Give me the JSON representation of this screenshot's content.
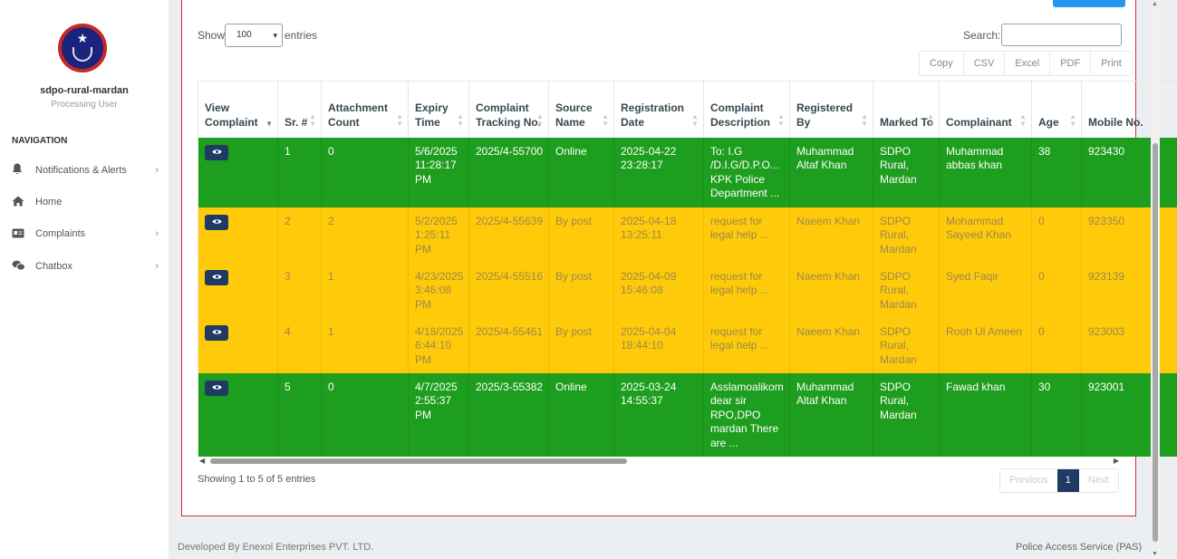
{
  "sidebar": {
    "username": "sdpo-rural-mardan",
    "role": "Processing User",
    "nav_heading": "NAVIGATION",
    "items": [
      {
        "label": "Notifications & Alerts",
        "icon": "bell-icon"
      },
      {
        "label": "Home",
        "icon": "home-icon"
      },
      {
        "label": "Complaints",
        "icon": "id-card-icon"
      },
      {
        "label": "Chatbox",
        "icon": "chat-icon"
      }
    ]
  },
  "controls": {
    "show_label": "Show",
    "entries_value": "100",
    "entries_label": "entries",
    "search_label": "Search:",
    "search_value": "",
    "export_buttons": [
      "Copy",
      "CSV",
      "Excel",
      "PDF",
      "Print"
    ]
  },
  "table": {
    "headers": [
      "View Complaint",
      "Sr. #",
      "Attachment Count",
      "Expiry Time",
      "Complaint Tracking No.",
      "Source Name",
      "Registration Date",
      "Complaint Description",
      "Registered By",
      "Marked To",
      "Complainant",
      "Age",
      "Mobile No."
    ],
    "rows": [
      {
        "status": "green",
        "sr": "1",
        "attachments": "0",
        "expiry": "5/6/2025 11:28:17 PM",
        "tracking": "2025/4-55700",
        "source": "Online",
        "reg_date": "2025-04-22 23:28:17",
        "description": "To: I.G /D.I.G/D.P.O... KPK Police Department ...",
        "registered_by": "Muhammad Altaf Khan",
        "marked_to": "SDPO Rural, Mardan",
        "complainant": "Muhammad abbas khan",
        "age": "38",
        "mobile": "923430"
      },
      {
        "status": "yellow",
        "sr": "2",
        "attachments": "2",
        "expiry": "5/2/2025 1:25:11 PM",
        "tracking": "2025/4-55639",
        "source": "By post",
        "reg_date": "2025-04-18 13:25:11",
        "description": "request for legal help ...",
        "registered_by": "Naeem Khan",
        "marked_to": "SDPO Rural, Mardan",
        "complainant": "Mohammad Sayeed Khan",
        "age": "0",
        "mobile": "923350"
      },
      {
        "status": "yellow",
        "sr": "3",
        "attachments": "1",
        "expiry": "4/23/2025 3:46:08 PM",
        "tracking": "2025/4-55516",
        "source": "By post",
        "reg_date": "2025-04-09 15:46:08",
        "description": "request for legal help ...",
        "registered_by": "Naeem Khan",
        "marked_to": "SDPO Rural, Mardan",
        "complainant": "Syed Faqir",
        "age": "0",
        "mobile": "923139"
      },
      {
        "status": "yellow",
        "sr": "4",
        "attachments": "1",
        "expiry": "4/18/2025 6:44:10 PM",
        "tracking": "2025/4-55461",
        "source": "By post",
        "reg_date": "2025-04-04 18:44:10",
        "description": "request for legal help ...",
        "registered_by": "Naeem Khan",
        "marked_to": "SDPO Rural, Mardan",
        "complainant": "Rooh Ul Ameen",
        "age": "0",
        "mobile": "923003"
      },
      {
        "status": "green",
        "sr": "5",
        "attachments": "0",
        "expiry": "4/7/2025 2:55:37 PM",
        "tracking": "2025/3-55382",
        "source": "Online",
        "reg_date": "2025-03-24 14:55:37",
        "description": "Asslamoalikom dear sir RPO,DPO mardan There are ...",
        "registered_by": "Muhammad Altaf Khan",
        "marked_to": "SDPO Rural, Mardan",
        "complainant": "Fawad khan",
        "age": "30",
        "mobile": "923001"
      }
    ]
  },
  "pagination": {
    "info": "Showing 1 to 5 of 5 entries",
    "previous": "Previous",
    "page": "1",
    "next": "Next"
  },
  "footer": {
    "left": "Developed By Enexol Enterprises PVT. LTD.",
    "right": "Police Access Service (PAS)"
  },
  "colors": {
    "green_row": "#1e9e1e",
    "yellow_row": "#ffca0a",
    "primary": "#1f3a63",
    "card_border": "#d32f2f"
  }
}
